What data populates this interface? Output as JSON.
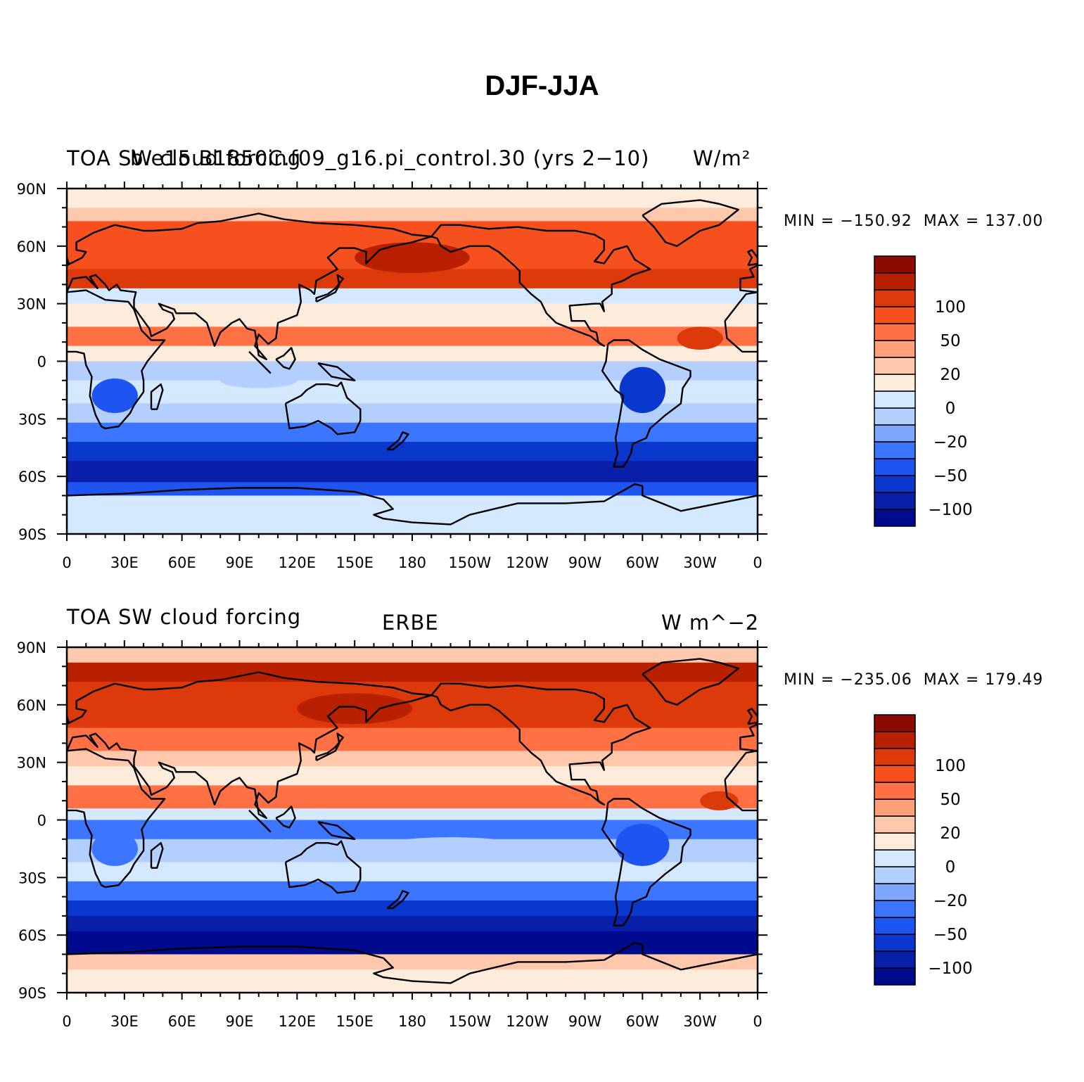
{
  "figure": {
    "title": "DJF-JJA"
  },
  "colorbar": {
    "colors": [
      "#000a8c",
      "#0a1fa8",
      "#0a37cc",
      "#1e55f0",
      "#3c75ff",
      "#7da7ff",
      "#b3cfff",
      "#d4e8ff",
      "#fdecdc",
      "#ffc7ab",
      "#ffa07a",
      "#ff7044",
      "#f5501e",
      "#dc3a0a",
      "#b92000",
      "#8c0a00"
    ],
    "labels": [
      {
        "text": "100",
        "boundary": 13
      },
      {
        "text": "50",
        "boundary": 11
      },
      {
        "text": "20",
        "boundary": 9
      },
      {
        "text": "0",
        "boundary": 7
      },
      {
        "text": "−20",
        "boundary": 5
      },
      {
        "text": "−50",
        "boundary": 3
      },
      {
        "text": "−100",
        "boundary": 1
      }
    ]
  },
  "axes": {
    "lon_labels": [
      "0",
      "30E",
      "60E",
      "90E",
      "120E",
      "150E",
      "180",
      "150W",
      "120W",
      "90W",
      "60W",
      "30W",
      "0"
    ],
    "lat_labels": [
      "90N",
      "60N",
      "30N",
      "0",
      "30S",
      "60S",
      "90S"
    ]
  },
  "panels": [
    {
      "left_title": "TOA SW cloud forcing",
      "center_title": "b.e15.B1850C.f09_g16.pi_control.30 (yrs 2−10)",
      "right_title": "W/m²",
      "min_label": "MIN = −150.92",
      "max_label": "MAX = 137.00",
      "min": -150.92,
      "max": 137.0
    },
    {
      "left_title": "TOA SW cloud forcing",
      "center_title": "ERBE",
      "right_title": "W m^−2",
      "min_label": "MIN = −235.06",
      "max_label": "MAX = 179.49",
      "min": -235.06,
      "max": 179.49
    }
  ]
}
